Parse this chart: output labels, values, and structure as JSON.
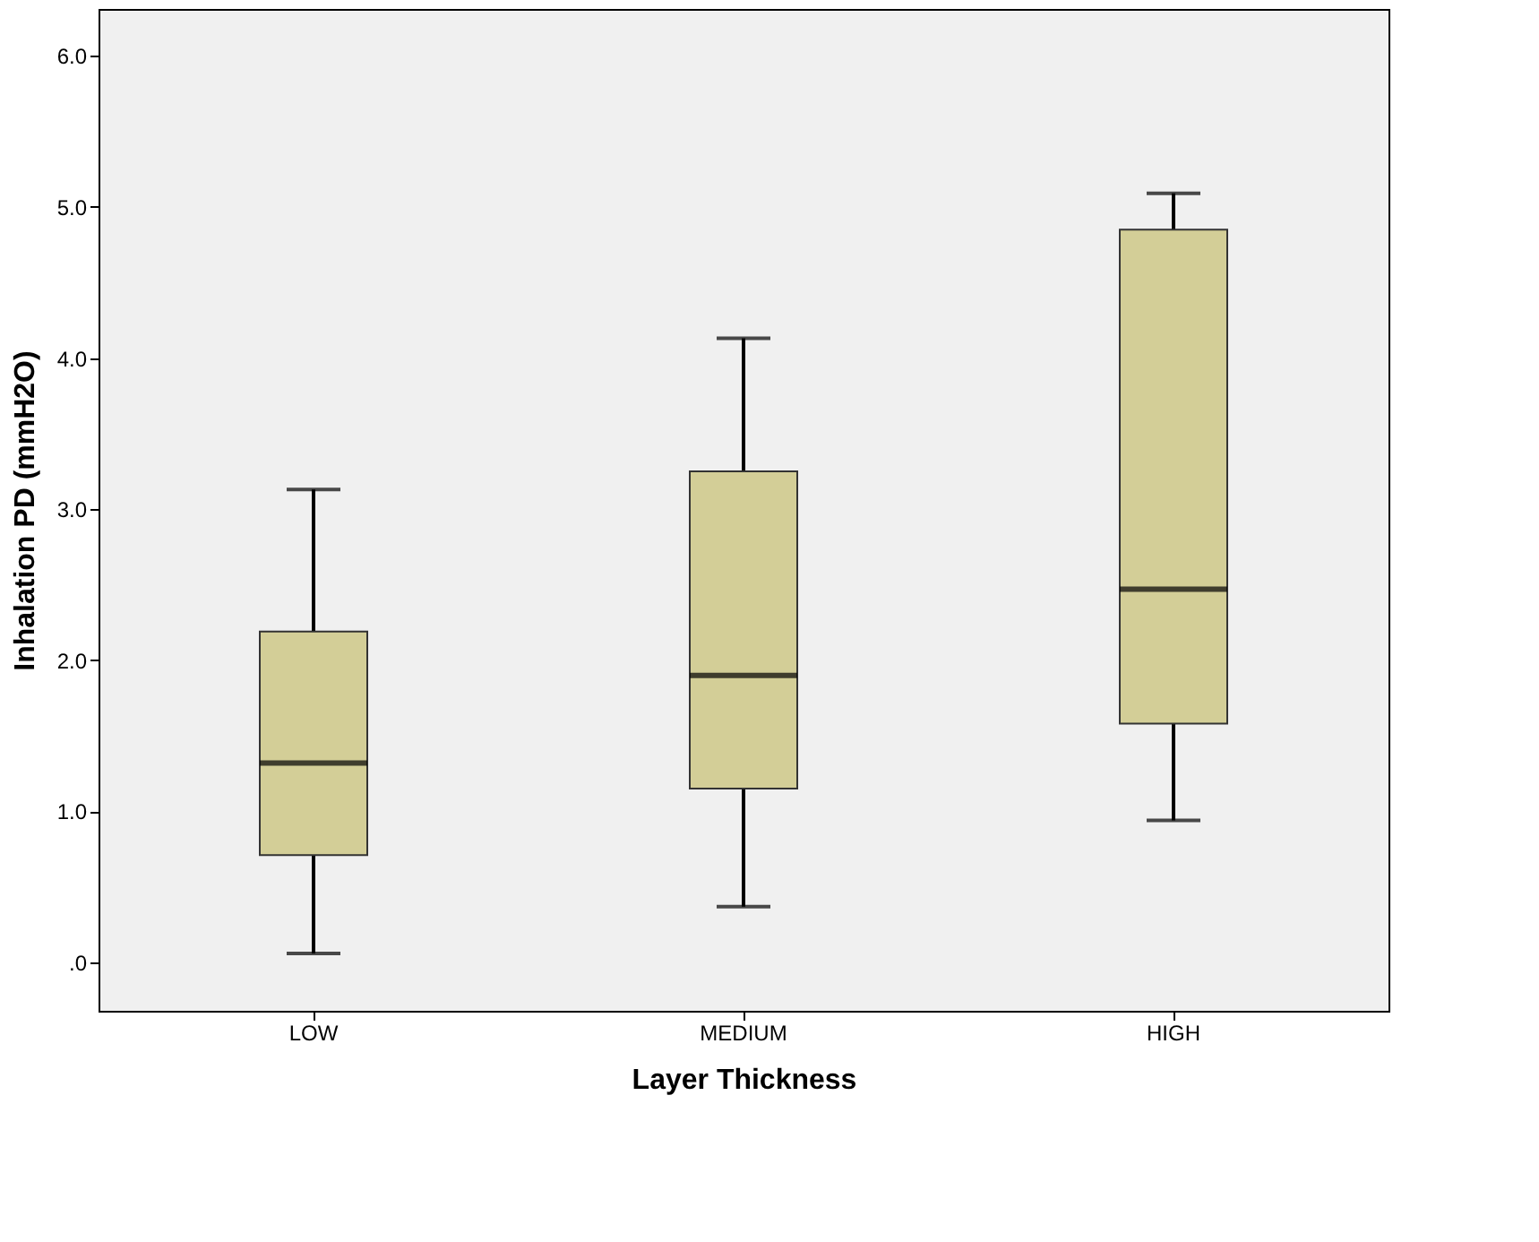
{
  "chart_data": {
    "type": "box",
    "xlabel": "Layer Thickness",
    "ylabel": "Inhalation PD (mmH2O)",
    "categories": [
      "LOW",
      "MEDIUM",
      "HIGH"
    ],
    "boxes": [
      {
        "low": 0.06,
        "q1": 0.71,
        "median": 1.32,
        "q3": 2.19,
        "high": 3.13
      },
      {
        "low": 0.37,
        "q1": 1.15,
        "median": 1.9,
        "q3": 3.25,
        "high": 4.13
      },
      {
        "low": 0.94,
        "q1": 1.58,
        "median": 2.47,
        "q3": 4.85,
        "high": 5.09
      }
    ],
    "color": "#d3ce97",
    "ylim": [
      -0.32,
      6.31
    ],
    "yticks": [
      {
        "value": 0,
        "label": ".0"
      },
      {
        "value": 1,
        "label": "1.0"
      },
      {
        "value": 2,
        "label": "2.0"
      },
      {
        "value": 3,
        "label": "3.0"
      },
      {
        "value": 4,
        "label": "4.0"
      },
      {
        "value": 5,
        "label": "5.0"
      },
      {
        "value": 6,
        "label": "6.0"
      }
    ],
    "grid": false
  }
}
